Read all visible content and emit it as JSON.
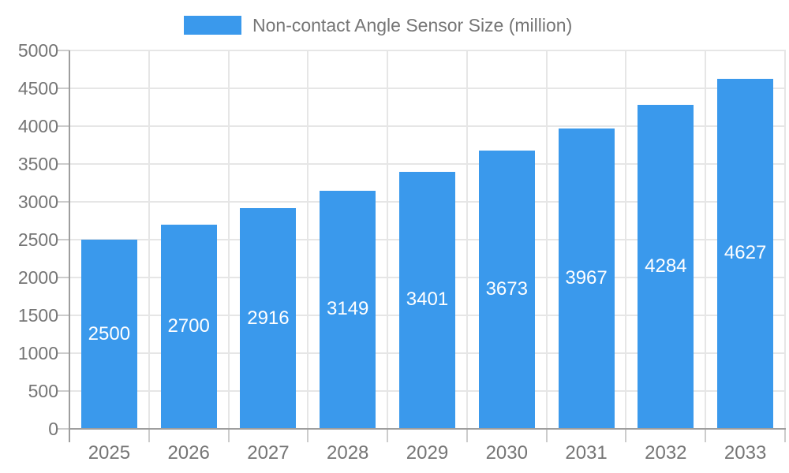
{
  "legend": {
    "label": "Non-contact Angle Sensor Size (million)"
  },
  "chart_data": {
    "type": "bar",
    "title": "Non-contact Angle Sensor Size (million)",
    "categories": [
      "2025",
      "2026",
      "2027",
      "2028",
      "2029",
      "2030",
      "2031",
      "2032",
      "2033"
    ],
    "series": [
      {
        "name": "Non-contact Angle Sensor Size (million)",
        "values": [
          2500,
          2700,
          2916,
          3149,
          3401,
          3673,
          3967,
          4284,
          4627
        ]
      }
    ],
    "xlabel": "",
    "ylabel": "",
    "ylim": [
      0,
      5000
    ],
    "yticks": [
      0,
      500,
      1000,
      1500,
      2000,
      2500,
      3000,
      3500,
      4000,
      4500,
      5000
    ],
    "grid": true,
    "legend_position": "top",
    "value_labels": "inside-center",
    "colors": {
      "bar": "#3a99ec",
      "value_label": "#ffffff",
      "axis": "#9e9e9e",
      "grid": "#e6e6e6",
      "tick": "#cccccc",
      "text": "#757575",
      "background": "#ffffff"
    }
  }
}
